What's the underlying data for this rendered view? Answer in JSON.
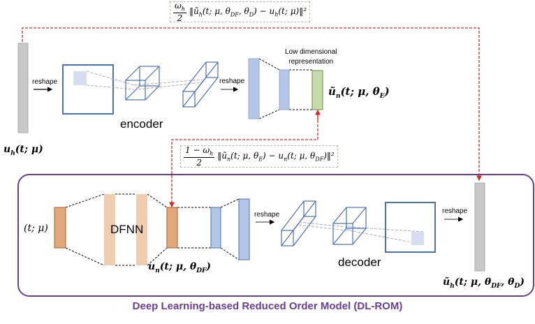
{
  "colors": {
    "red_dash": "#d62728",
    "purple_box": "#6a3d9a",
    "blue": "#4a72b0",
    "blue_fill": "#b4c6e7",
    "green_fill": "#c5dcaa",
    "orange_fill": "#e3a87a",
    "light_orange": "#f1cdb0",
    "gray": "#c8c8c8"
  },
  "encoder": {
    "input_label": [
      [
        "u",
        "h"
      ],
      [
        "(t; μ)",
        ""
      ]
    ],
    "reshape1": "reshape",
    "reshape2": "reshape",
    "name": "encoder",
    "latent_caption_line1": "Low dimensional",
    "latent_caption_line2": "representation",
    "latent_label": [
      [
        "ũ",
        "n"
      ],
      [
        "(t; μ, θ",
        ""
      ],
      [
        "",
        "E"
      ],
      [
        ")",
        ""
      ]
    ]
  },
  "loss_top": {
    "num": [
      [
        "ω",
        "h"
      ]
    ],
    "den": "2",
    "body": [
      [
        "‖ũ",
        "h"
      ],
      [
        "(t; μ, θ",
        "DF"
      ],
      [
        ", θ",
        "D"
      ],
      [
        ") − u",
        "h"
      ],
      [
        "(t; μ)‖²",
        ""
      ]
    ]
  },
  "loss_mid": {
    "num": [
      [
        "1 − ω",
        "h"
      ]
    ],
    "den": "2",
    "body": [
      [
        "‖ũ",
        "n"
      ],
      [
        "(t; μ, θ",
        "E"
      ],
      [
        ") − u",
        "n"
      ],
      [
        "(t; μ, θ",
        "DF"
      ],
      [
        ")‖²",
        ""
      ]
    ]
  },
  "dlrom": {
    "input_label": "(t; μ)",
    "dfnn": "DFNN",
    "dfnn_output": [
      [
        "u",
        "n"
      ],
      [
        "(t; μ, θ",
        ""
      ],
      [
        "",
        "DF"
      ],
      [
        ")",
        ""
      ]
    ],
    "reshape1": "reshape",
    "decoder": "decoder",
    "reshape2": "reshape",
    "output_label": [
      [
        "ũ",
        "h"
      ],
      [
        "(t; μ, θ",
        ""
      ],
      [
        "",
        "DF"
      ],
      [
        ", θ",
        ""
      ],
      [
        "",
        "D"
      ],
      [
        ")",
        ""
      ]
    ],
    "title": "Deep Learning-based Reduced Order Model (DL-ROM)"
  }
}
